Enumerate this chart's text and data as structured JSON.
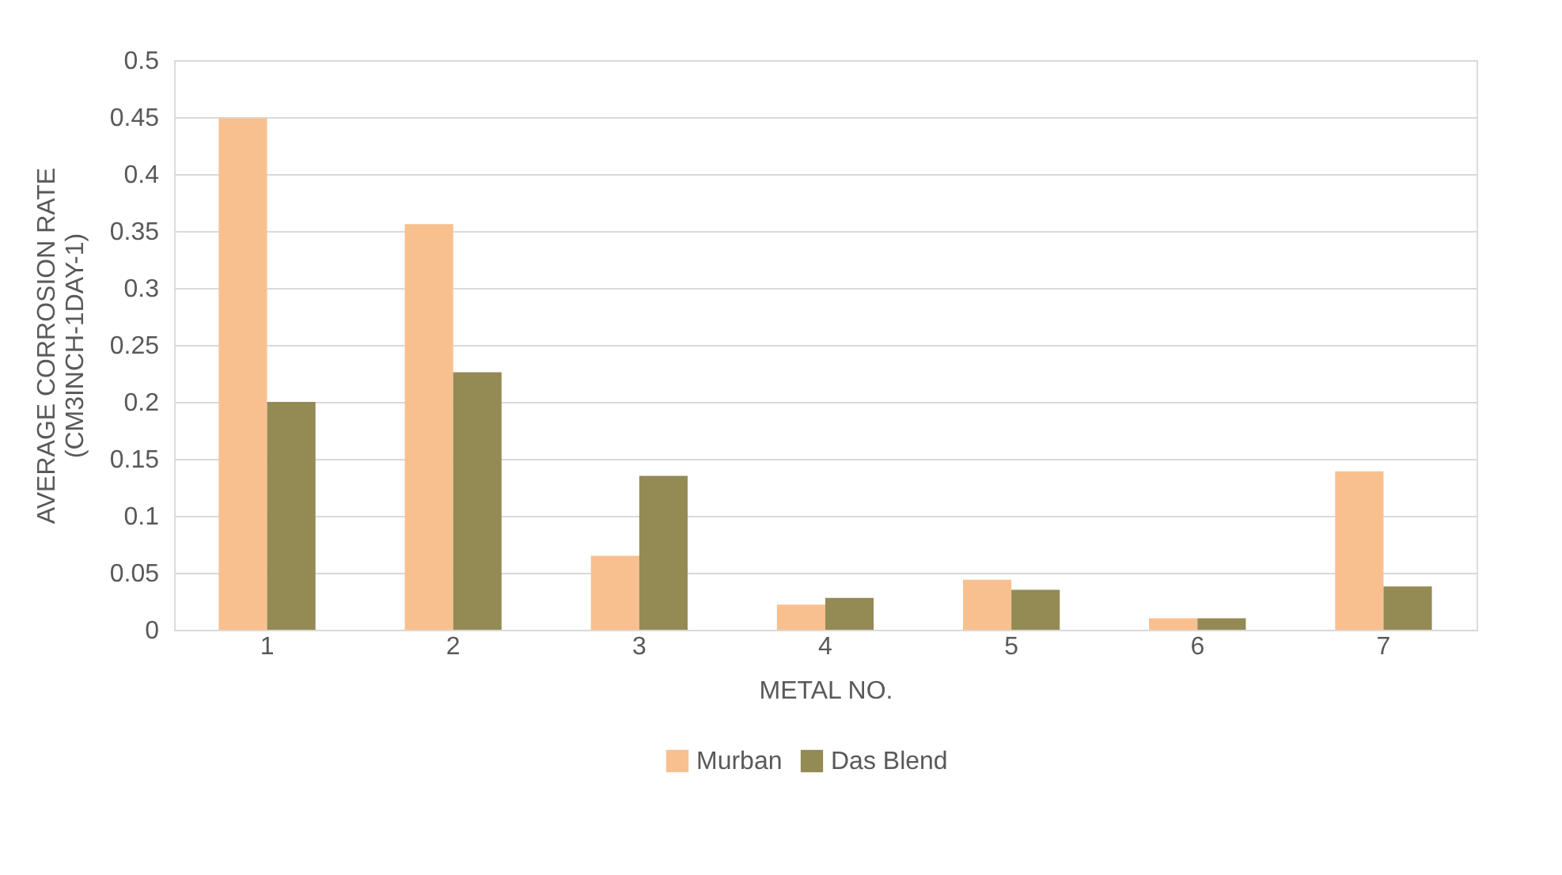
{
  "chart_data": {
    "type": "bar",
    "xlabel": "METAL NO.",
    "ylabel": "AVERAGE CORROSION RATE\n(CM3INCH-1DAY-1)",
    "categories": [
      "1",
      "2",
      "3",
      "4",
      "5",
      "6",
      "7"
    ],
    "series": [
      {
        "name": "Murban",
        "color": "#f9c08f",
        "values": [
          0.449,
          0.356,
          0.065,
          0.022,
          0.044,
          0.01,
          0.139
        ]
      },
      {
        "name": "Das Blend",
        "color": "#948a54",
        "values": [
          0.2,
          0.226,
          0.135,
          0.028,
          0.035,
          0.01,
          0.038
        ]
      }
    ],
    "ylim": [
      0,
      0.5
    ],
    "yticks": [
      0,
      0.05,
      0.1,
      0.15,
      0.2,
      0.25,
      0.3,
      0.35,
      0.4,
      0.45,
      0.5
    ],
    "grid": "y",
    "legend": "bottom"
  }
}
